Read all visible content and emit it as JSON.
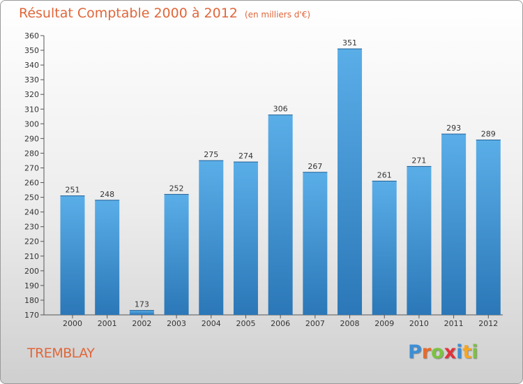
{
  "chart_data": {
    "type": "bar",
    "title": "Résultat Comptable 2000 à 2012",
    "subtitle": "(en milliers d'€)",
    "categories": [
      "2000",
      "2001",
      "2002",
      "2003",
      "2004",
      "2005",
      "2006",
      "2007",
      "2008",
      "2009",
      "2010",
      "2011",
      "2012"
    ],
    "values": [
      251,
      248,
      173,
      252,
      275,
      274,
      306,
      267,
      351,
      261,
      271,
      293,
      289
    ],
    "ylim": [
      170,
      360
    ],
    "ytick_step": 10,
    "xlabel": "",
    "ylabel": "",
    "grid": false,
    "colors": {
      "bar_top": "#5aaee8",
      "bar_bottom": "#2b77b7",
      "title": "#e0663a"
    }
  },
  "footer": {
    "commune": "TREMBLAY",
    "brand_letters": [
      "P",
      "r",
      "o",
      "x",
      "i",
      "t",
      "i"
    ],
    "brand_colors": [
      "#3d8fd6",
      "#e86a2b",
      "#7cc242",
      "#e2323b",
      "#3d8fd6",
      "#f5a623",
      "#7cc242"
    ]
  }
}
